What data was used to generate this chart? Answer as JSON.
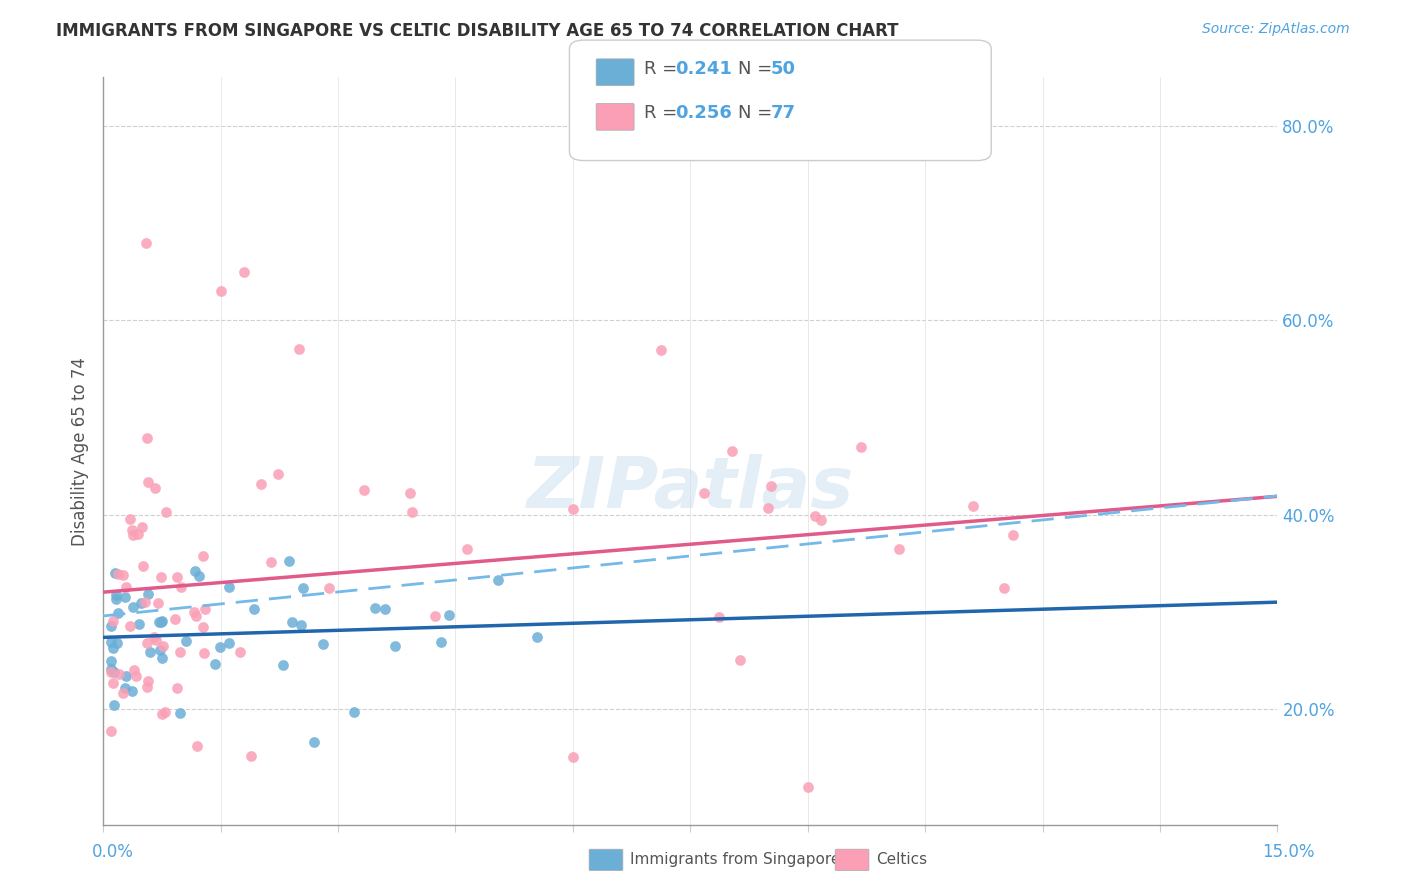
{
  "title": "IMMIGRANTS FROM SINGAPORE VS CELTIC DISABILITY AGE 65 TO 74 CORRELATION CHART",
  "source": "Source: ZipAtlas.com",
  "ylabel": "Disability Age 65 to 74",
  "ylabel_right_vals": [
    0.2,
    0.4,
    0.6,
    0.8
  ],
  "xmin": 0.0,
  "xmax": 0.15,
  "ymin": 0.08,
  "ymax": 0.85,
  "color_blue": "#6baed6",
  "color_pink": "#fa9fb5",
  "color_trend_blue": "#2166ac",
  "color_trend_pink": "#e05a8a",
  "color_trend_dashed": "#74b9e7",
  "color_axis_labels": "#4fa3e0",
  "color_text": "#555555",
  "color_title": "#333333",
  "watermark_text": "ZIPatlas",
  "r1": "0.241",
  "n1": "50",
  "r2": "0.256",
  "n2": "77",
  "legend1_label": "Immigrants from Singapore",
  "legend2_label": "Celtics"
}
